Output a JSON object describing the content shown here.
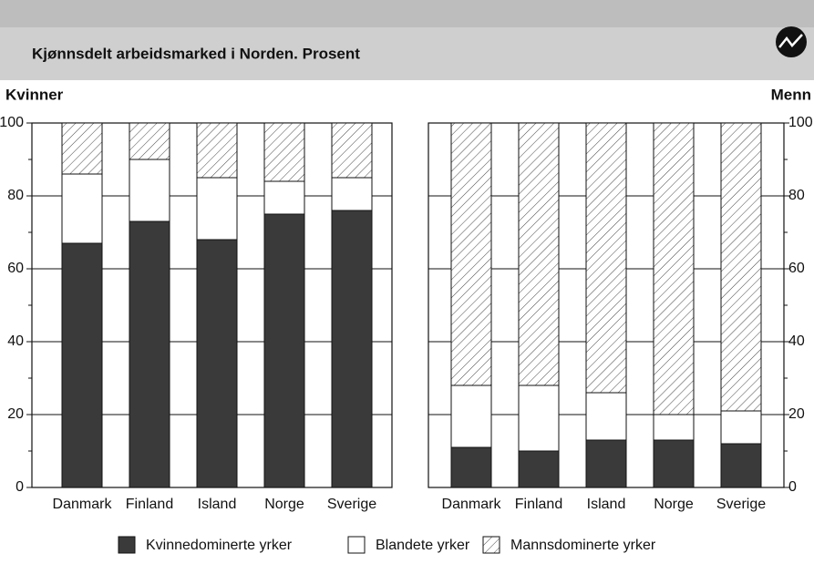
{
  "chart_data": {
    "type": "bar",
    "stacked": true,
    "title": "Kjønnsdelt arbeidsmarked i Norden. Prosent",
    "series": [
      {
        "name": "Kvinnedominerte yrker",
        "color": "#3a3a3a",
        "pattern": "solid"
      },
      {
        "name": "Blandete yrker",
        "color": "#ffffff",
        "pattern": "solid"
      },
      {
        "name": "Mannsdominerte yrker",
        "color": "#ffffff",
        "pattern": "hatch"
      }
    ],
    "panels": [
      {
        "label": "Kvinner",
        "axis_side": "left",
        "categories": [
          "Danmark",
          "Finland",
          "Island",
          "Norge",
          "Sverige"
        ],
        "values": [
          [
            67,
            73,
            68,
            75,
            76
          ],
          [
            19,
            17,
            17,
            9,
            9
          ],
          [
            14,
            10,
            15,
            16,
            15
          ]
        ],
        "ylim": [
          0,
          100
        ],
        "yticks": [
          0,
          20,
          40,
          60,
          80,
          100
        ],
        "grid": true
      },
      {
        "label": "Menn",
        "axis_side": "right",
        "categories": [
          "Danmark",
          "Finland",
          "Island",
          "Norge",
          "Sverige"
        ],
        "values": [
          [
            11,
            10,
            13,
            13,
            12
          ],
          [
            17,
            18,
            13,
            7,
            9
          ],
          [
            72,
            72,
            74,
            80,
            79
          ]
        ],
        "ylim": [
          0,
          100
        ],
        "yticks": [
          0,
          20,
          40,
          60,
          80,
          100
        ],
        "grid": true
      }
    ]
  }
}
